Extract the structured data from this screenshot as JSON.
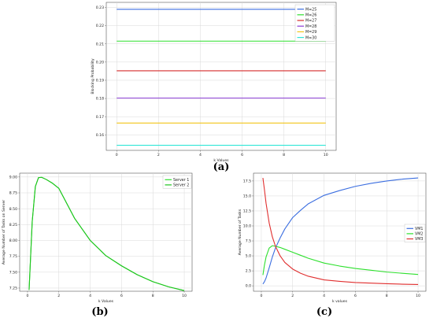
{
  "chart_data": [
    {
      "type": "line",
      "panel": "(a)",
      "xlabel": "k Values",
      "ylabel": "Blocking Probability",
      "xlim": [
        -0.5,
        10.5
      ],
      "ylim": [
        0.1515,
        0.2328
      ],
      "xticks": [
        0,
        2,
        4,
        6,
        8,
        10
      ],
      "yticks": [
        0.16,
        0.17,
        0.18,
        0.19,
        0.2,
        0.21,
        0.22,
        0.23
      ],
      "ytick_labels": [
        "0.16",
        "0.17",
        "0.18",
        "0.19",
        "0.20",
        "0.21",
        "0.22",
        "0.23"
      ],
      "grid": true,
      "legend_position": "top-right",
      "x": [
        0,
        10
      ],
      "series": [
        {
          "name": "M=25",
          "color": "#3b6ee0",
          "values": [
            0.229,
            0.229
          ]
        },
        {
          "name": "M=26",
          "color": "#2ee02e",
          "values": [
            0.2115,
            0.2115
          ]
        },
        {
          "name": "M=27",
          "color": "#d62b2b",
          "values": [
            0.1952,
            0.1952
          ]
        },
        {
          "name": "M=28",
          "color": "#8a3bd6",
          "values": [
            0.1802,
            0.1802
          ]
        },
        {
          "name": "M=29",
          "color": "#f2c418",
          "values": [
            0.1665,
            0.1665
          ]
        },
        {
          "name": "M=30",
          "color": "#2ee6d6",
          "values": [
            0.1543,
            0.1543
          ]
        }
      ]
    },
    {
      "type": "line",
      "panel": "(b)",
      "xlabel": "k Values",
      "ylabel": "Average Number of Tasks on Server",
      "xlim": [
        -0.5,
        10.5
      ],
      "ylim": [
        7.2,
        9.06
      ],
      "xticks": [
        0,
        2,
        4,
        6,
        8,
        10
      ],
      "yticks": [
        7.25,
        7.5,
        7.75,
        8.0,
        8.25,
        8.5,
        8.75,
        9.0
      ],
      "ytick_labels": [
        "7.25",
        "7.50",
        "7.75",
        "8.00",
        "8.25",
        "8.50",
        "8.75",
        "9.00"
      ],
      "grid": true,
      "legend_position": "top-right",
      "x": [
        0.1,
        0.3,
        0.5,
        0.7,
        0.9,
        1.2,
        1.6,
        2.0,
        3.0,
        4.0,
        5.0,
        6.0,
        7.0,
        8.0,
        9.0,
        10.0
      ],
      "series": [
        {
          "name": "Server 1",
          "color": "#2ee02e",
          "values": [
            7.22,
            8.3,
            8.85,
            8.99,
            8.995,
            8.96,
            8.9,
            8.82,
            8.35,
            8.0,
            7.76,
            7.6,
            7.46,
            7.35,
            7.27,
            7.21
          ]
        },
        {
          "name": "Server 2",
          "color": "#1fc41f",
          "values": [
            7.22,
            8.3,
            8.85,
            8.99,
            8.995,
            8.96,
            8.9,
            8.82,
            8.35,
            8.0,
            7.76,
            7.6,
            7.46,
            7.35,
            7.27,
            7.21
          ]
        }
      ]
    },
    {
      "type": "line",
      "panel": "(c)",
      "xlabel": "k values",
      "ylabel": "Average Number of Tasks",
      "xlim": [
        -0.5,
        10.5
      ],
      "ylim": [
        -0.9,
        18.8
      ],
      "xticks": [
        0,
        2,
        4,
        6,
        8,
        10
      ],
      "yticks": [
        0.0,
        2.5,
        5.0,
        7.5,
        10.0,
        12.5,
        15.0,
        17.5
      ],
      "ytick_labels": [
        "0.0",
        "2.5",
        "5.0",
        "7.5",
        "10.0",
        "12.5",
        "15.0",
        "17.5"
      ],
      "grid": true,
      "legend_position": "center-right",
      "x": [
        0.1,
        0.2,
        0.3,
        0.5,
        0.7,
        0.9,
        1.2,
        1.5,
        2.0,
        2.5,
        3.0,
        4.0,
        5.0,
        6.0,
        7.0,
        8.0,
        9.0,
        10.0
      ],
      "series": [
        {
          "name": "VM1",
          "color": "#3b6ee0",
          "values": [
            0.3,
            0.7,
            1.3,
            3.0,
            4.8,
            6.3,
            8.0,
            9.5,
            11.4,
            12.6,
            13.7,
            15.1,
            15.9,
            16.6,
            17.1,
            17.5,
            17.8,
            18.0
          ]
        },
        {
          "name": "VM2",
          "color": "#2ee02e",
          "values": [
            1.8,
            3.5,
            4.8,
            6.3,
            6.7,
            6.6,
            6.4,
            6.1,
            5.6,
            5.1,
            4.6,
            3.8,
            3.3,
            2.9,
            2.6,
            2.3,
            2.1,
            1.9
          ]
        },
        {
          "name": "VM3",
          "color": "#e02e2e",
          "values": [
            18.0,
            16.0,
            13.8,
            10.5,
            8.2,
            6.6,
            5.0,
            3.9,
            2.8,
            2.1,
            1.6,
            1.0,
            0.75,
            0.55,
            0.45,
            0.35,
            0.28,
            0.22
          ]
        }
      ]
    }
  ]
}
